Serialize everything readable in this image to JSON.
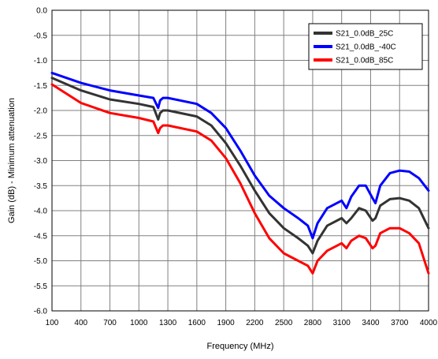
{
  "chart_data": {
    "type": "line",
    "title": "",
    "xlabel": "Frequency (MHz)",
    "ylabel": "Gain (dB) - Minimum attenuation",
    "xlim": [
      100,
      4000
    ],
    "ylim": [
      -6.0,
      0.0
    ],
    "grid": true,
    "legend_position": "top-right",
    "x_ticks": [
      "100",
      "400",
      "700",
      "1000",
      "1300",
      "1600",
      "1900",
      "2200",
      "2500",
      "2800",
      "3100",
      "3400",
      "3700",
      "4000"
    ],
    "y_ticks": [
      "0.0",
      "-0.5",
      "-1.0",
      "-1.5",
      "-2.0",
      "-2.5",
      "-3.0",
      "-3.5",
      "-4.0",
      "-4.5",
      "-5.0",
      "-5.5",
      "-6.0"
    ],
    "series": [
      {
        "name": "S21_0.0dB_25C",
        "color": "#333333",
        "x": [
          100,
          400,
          700,
          1000,
          1150,
          1200,
          1220,
          1250,
          1300,
          1600,
          1750,
          1900,
          2050,
          2200,
          2350,
          2500,
          2650,
          2750,
          2800,
          2850,
          2950,
          3100,
          3150,
          3200,
          3280,
          3350,
          3420,
          3450,
          3500,
          3600,
          3700,
          3800,
          3900,
          4000
        ],
        "y": [
          -1.35,
          -1.6,
          -1.78,
          -1.87,
          -1.93,
          -2.18,
          -2.05,
          -2.0,
          -2.0,
          -2.12,
          -2.3,
          -2.65,
          -3.1,
          -3.6,
          -4.05,
          -4.35,
          -4.55,
          -4.7,
          -4.85,
          -4.6,
          -4.3,
          -4.15,
          -4.25,
          -4.15,
          -3.95,
          -4.0,
          -4.2,
          -4.15,
          -3.9,
          -3.77,
          -3.75,
          -3.8,
          -3.95,
          -4.35
        ]
      },
      {
        "name": "S21_0.0dB_-40C",
        "color": "#0000ff",
        "x": [
          100,
          400,
          700,
          1000,
          1150,
          1200,
          1220,
          1250,
          1300,
          1600,
          1750,
          1900,
          2050,
          2200,
          2350,
          2500,
          2650,
          2750,
          2800,
          2850,
          2950,
          3100,
          3150,
          3200,
          3280,
          3350,
          3420,
          3450,
          3500,
          3600,
          3700,
          3800,
          3900,
          4000
        ],
        "y": [
          -1.25,
          -1.45,
          -1.6,
          -1.7,
          -1.75,
          -1.95,
          -1.8,
          -1.75,
          -1.75,
          -1.87,
          -2.05,
          -2.35,
          -2.8,
          -3.3,
          -3.7,
          -3.95,
          -4.15,
          -4.3,
          -4.55,
          -4.25,
          -3.95,
          -3.8,
          -3.95,
          -3.72,
          -3.5,
          -3.5,
          -3.75,
          -3.85,
          -3.5,
          -3.25,
          -3.2,
          -3.22,
          -3.35,
          -3.6
        ]
      },
      {
        "name": "S21_0.0dB_85C",
        "color": "#ff0000",
        "x": [
          100,
          400,
          700,
          1000,
          1150,
          1200,
          1220,
          1250,
          1300,
          1600,
          1750,
          1900,
          2050,
          2200,
          2350,
          2500,
          2650,
          2750,
          2800,
          2850,
          2950,
          3100,
          3150,
          3200,
          3280,
          3350,
          3420,
          3450,
          3500,
          3600,
          3700,
          3800,
          3900,
          4000
        ],
        "y": [
          -1.48,
          -1.85,
          -2.05,
          -2.15,
          -2.22,
          -2.45,
          -2.35,
          -2.3,
          -2.3,
          -2.42,
          -2.6,
          -2.95,
          -3.45,
          -4.05,
          -4.55,
          -4.85,
          -5.0,
          -5.1,
          -5.25,
          -5.0,
          -4.8,
          -4.65,
          -4.75,
          -4.6,
          -4.5,
          -4.55,
          -4.75,
          -4.7,
          -4.45,
          -4.35,
          -4.35,
          -4.45,
          -4.65,
          -5.25
        ]
      }
    ]
  }
}
